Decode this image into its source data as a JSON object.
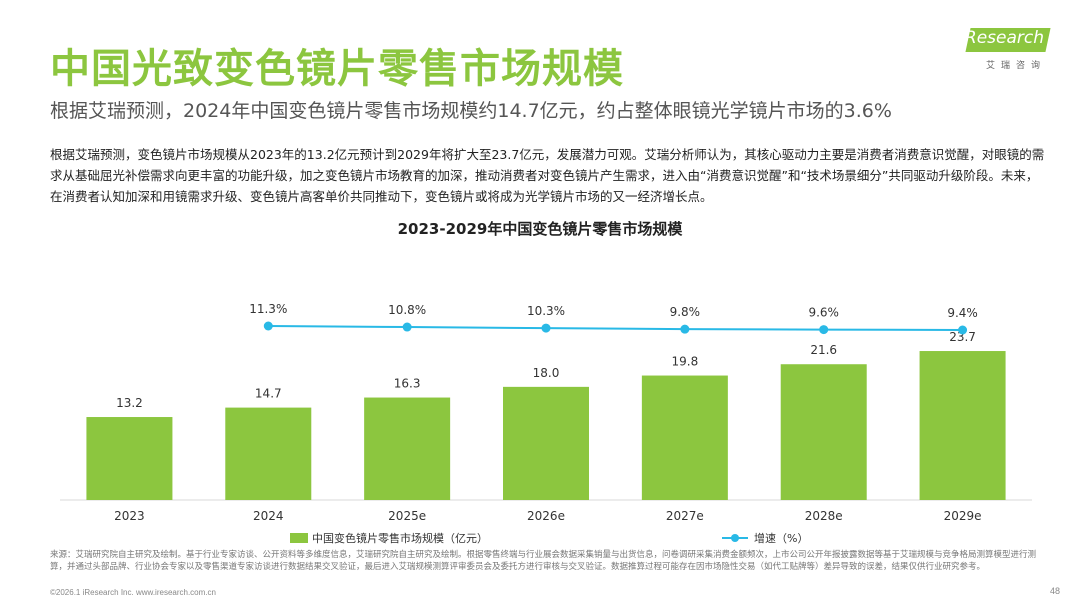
{
  "header": {
    "title": "中国光致变色镜片零售市场规模",
    "subtitle": "根据艾瑞预测，2024年中国变色镜片零售市场规模约14.7亿元，约占整体眼镜光学镜片市场的3.6%"
  },
  "brand": {
    "logo_text": "iResearch",
    "logo_sub": "艾瑞咨询",
    "accent_color": "#8cc63f"
  },
  "body": {
    "paragraph": "根据艾瑞预测，变色镜片市场规模从2023年的13.2亿元预计到2029年将扩大至23.7亿元，发展潜力可观。艾瑞分析师认为，其核心驱动力主要是消费者消费意识觉醒，对眼镜的需求从基础屈光补偿需求向更丰富的功能升级，加之变色镜片市场教育的加深，推动消费者对变色镜片产生需求，进入由“消费意识觉醒”和“技术场景细分”共同驱动升级阶段。未来，在消费者认知加深和用镜需求升级、变色镜片高客单价共同推动下，变色镜片或将成为光学镜片市场的又一经济增长点。"
  },
  "chart_data": {
    "type": "bar",
    "title": "2023-2029年中国变色镜片零售市场规模",
    "categories": [
      "2023",
      "2024",
      "2025e",
      "2026e",
      "2027e",
      "2028e",
      "2029e"
    ],
    "series": [
      {
        "name": "中国变色镜片零售市场规模（亿元）",
        "type": "bar",
        "color": "#8cc63f",
        "values": [
          13.2,
          14.7,
          16.3,
          18.0,
          19.8,
          21.6,
          23.7
        ],
        "labels": [
          "13.2",
          "14.7",
          "16.3",
          "18.0",
          "19.8",
          "21.6",
          "23.7"
        ]
      },
      {
        "name": "增速（%）",
        "type": "line",
        "color": "#29b9e6",
        "values": [
          null,
          11.3,
          10.8,
          10.3,
          9.8,
          9.6,
          9.4
        ],
        "labels": [
          "",
          "11.3%",
          "10.8%",
          "10.3%",
          "9.8%",
          "9.6%",
          "9.4%"
        ]
      }
    ],
    "xlabel": "",
    "ylabel": "",
    "ylim": [
      0,
      35
    ],
    "grid": false,
    "legend_position": "bottom"
  },
  "footer": {
    "source": "来源：艾瑞研究院自主研究及绘制。基于行业专家访谈、公开资料等多维度信息，艾瑞研究院自主研究及绘制。根据零售终端与行业展会数据采集销量与出货信息，问卷调研采集消费金额频次，上市公司公开年报披露数据等基于艾瑞规模与竞争格局测算模型进行测算，并通过头部品牌、行业协会专家以及零售渠道专家访谈进行数据结果交叉验证，最后进入艾瑞规模测算评审委员会及委托方进行审核与交叉验证。数据推算过程可能存在因市场隐性交易（如代工贴牌等）差异导致的误差，结果仅供行业研究参考。",
    "copyright": "©2026.1 iResearch Inc. www.iresearch.com.cn",
    "page_number": "48"
  }
}
